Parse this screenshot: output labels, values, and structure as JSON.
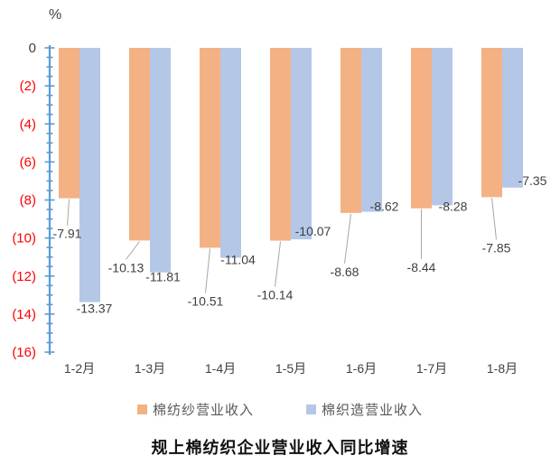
{
  "chart_data": {
    "type": "bar",
    "title": "规上棉纺织企业营业收入同比增速",
    "unit_label": "%",
    "categories": [
      "1-2月",
      "1-3月",
      "1-4月",
      "1-5月",
      "1-6月",
      "1-7月",
      "1-8月"
    ],
    "series": [
      {
        "name": "棉纺纱营业收入",
        "color": "#F4B183",
        "values": [
          -7.91,
          -10.13,
          -10.51,
          -10.14,
          -8.68,
          -8.44,
          -7.85
        ],
        "label_offsets": [
          [
            -2,
            39
          ],
          [
            -15,
            30
          ],
          [
            -5,
            59
          ],
          [
            -6,
            60
          ],
          [
            -7,
            65
          ],
          [
            0,
            65
          ],
          [
            5,
            56
          ]
        ],
        "leader_lines": true
      },
      {
        "name": "棉织造营业收入",
        "color": "#B4C7E7",
        "values": [
          -13.37,
          -11.81,
          -11.04,
          -10.07,
          -8.62,
          -8.28,
          -7.35
        ],
        "label_offsets": [
          [
            5,
            7
          ],
          [
            3,
            5
          ],
          [
            8,
            2
          ],
          [
            13,
            -9
          ],
          [
            14,
            -6
          ],
          [
            12,
            1
          ],
          [
            22,
            -8
          ]
        ],
        "leader_lines": false
      }
    ],
    "y_axis": {
      "min": -16,
      "max": 0,
      "major_step": 2,
      "minor_step": 0.5,
      "tick_labels": [
        "0",
        "(2)",
        "(4)",
        "(6)",
        "(8)",
        "(10)",
        "(12)",
        "(14)",
        "(16)"
      ],
      "zero_label_color": "#404040",
      "negative_label_color": "#FF0000",
      "axis_color": "#5B9BD5"
    },
    "data_labels": true,
    "data_label_color": "#404040",
    "leader_line_color": "#A6A6A6",
    "x_label_color": "#404040",
    "legend_position": "bottom",
    "grid": false
  }
}
